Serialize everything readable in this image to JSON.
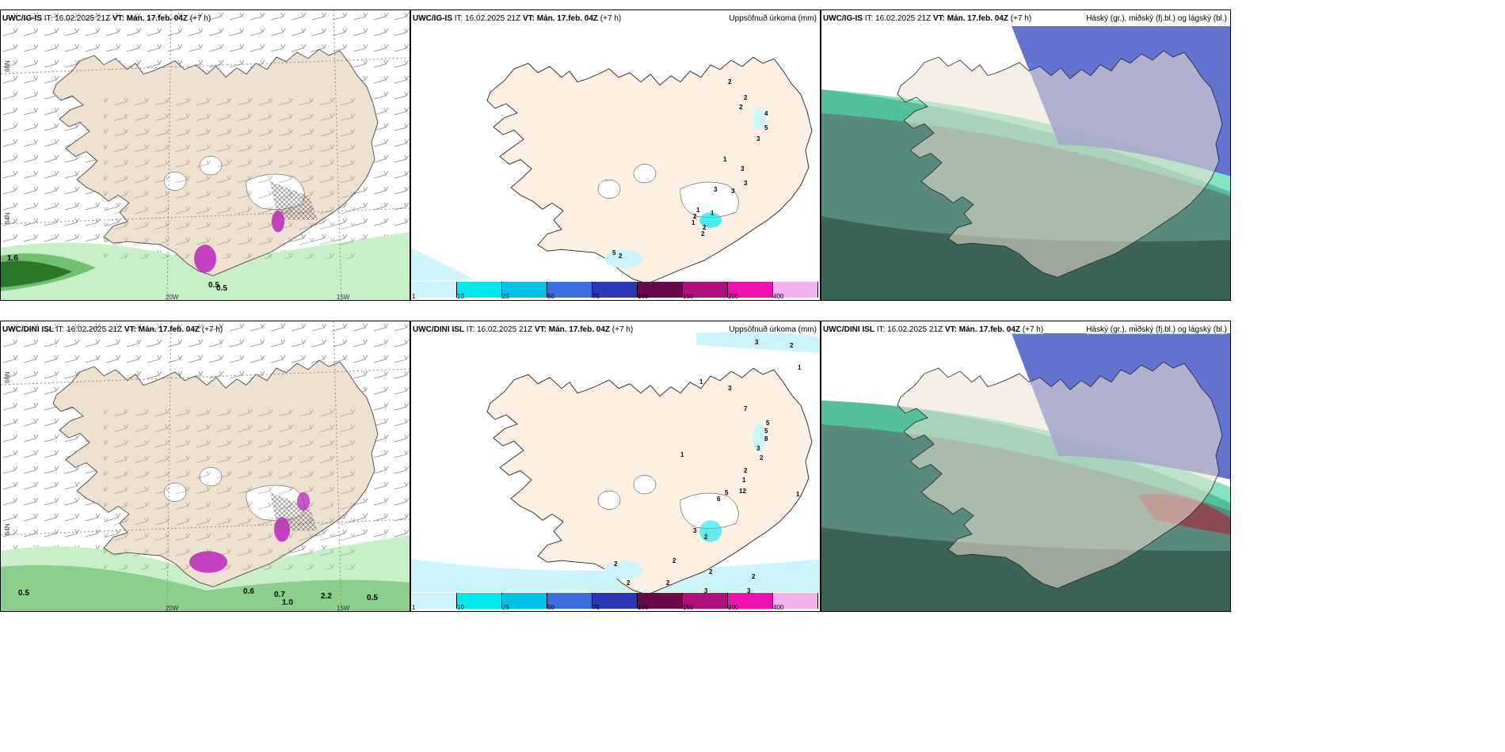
{
  "panels": {
    "p1": {
      "model": "UWC/IG-IS",
      "it": "IT: 16.02.2025 21Z",
      "vt": "VT: Mán. 17.feb. 04Z",
      "lead": "(+7 h)",
      "label": ""
    },
    "p2": {
      "model": "UWC/IG-IS",
      "it": "IT: 16.02.2025 21Z",
      "vt": "VT: Mán. 17.feb. 04Z",
      "lead": "(+7 h)",
      "label": "Uppsöfnuð úrkoma (mm)"
    },
    "p3": {
      "model": "UWC/IG-IS",
      "it": "IT: 16.02.2025 21Z",
      "vt": "VT: Mán. 17.feb. 04Z",
      "lead": "(+7 h)",
      "label": "Háský (gr.), miðský (fj.bl.) og lágský (bl.)"
    },
    "p4": {
      "model": "UWC/DINI ISL",
      "it": "IT: 16.02.2025 21Z",
      "vt": "VT: Mán. 17.feb. 04Z",
      "lead": "(+7 h)",
      "label": ""
    },
    "p5": {
      "model": "UWC/DINI ISL",
      "it": "IT: 16.02.2025 21Z",
      "vt": "VT: Mán. 17.feb. 04Z",
      "lead": "(+7 h)",
      "label": "Uppsöfnuð úrkoma (mm)"
    },
    "p6": {
      "model": "UWC/DINI ISL",
      "it": "IT: 16.02.2025 21Z",
      "vt": "VT: Mán. 17.feb. 04Z",
      "lead": "(+7 h)",
      "label": "Háský (gr.), miðský (fj.bl.) og lágský (bl.)"
    }
  },
  "axes": {
    "lat66": "66N",
    "lat64": "64N",
    "lon20": "20W",
    "lon15": "15W"
  },
  "legend": {
    "colors": [
      "#ccf5fb",
      "#00e8ee",
      "#00c0e8",
      "#3a6fe0",
      "#2e36b8",
      "#6a0a4a",
      "#b0107e",
      "#ee10b0",
      "#f2b0ee"
    ],
    "ticks": [
      "1",
      "10",
      "25",
      "50",
      "75",
      "100",
      "150",
      "200",
      "400"
    ]
  },
  "precip_values_top": [
    "2",
    "2",
    "2",
    "4",
    "5",
    "3",
    "3",
    "1",
    "3",
    "3",
    "3",
    "2",
    "2",
    "1",
    "2",
    "1",
    "1",
    "2",
    "5"
  ],
  "precip_values_bottom": [
    "3",
    "2",
    "1",
    "3",
    "1",
    "7",
    "5",
    "5",
    "8",
    "3",
    "2",
    "2",
    "1",
    "1",
    "12",
    "5",
    "6",
    "1",
    "2",
    "3",
    "2",
    "2",
    "2",
    "2",
    "2",
    "3",
    "3",
    "2"
  ],
  "snow_values_top": [
    "1.6",
    "0.5",
    "0.5"
  ],
  "snow_values_bottom": [
    "0.5",
    "0.6",
    "0.7",
    "1.0",
    "2.2",
    "0.5"
  ],
  "colors": {
    "land": "#efe1cf",
    "land_panel2": "#fbf0e2",
    "snow_light": "#c8f0c8",
    "snow_mid": "#70c070",
    "snow_dark": "#287828",
    "precip_mag": "#c030c0",
    "cloud_low": "#4a5ac8",
    "cloud_mid": "#2e6e5e",
    "cloud_high": "#50d8a8"
  }
}
